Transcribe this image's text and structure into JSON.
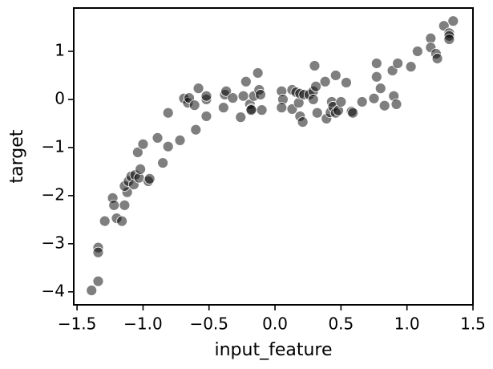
{
  "chart_data": {
    "type": "scatter",
    "x_label": "input_feature",
    "y_label": "target",
    "color": "#000000",
    "opacity": 0.5,
    "edgecolor": "#ffffff",
    "xlim": [
      -1.525,
      1.5
    ],
    "ylim": [
      -4.27,
      1.9
    ],
    "xticks": [
      {
        "value": -1.5,
        "label": "−1.5"
      },
      {
        "value": -1.0,
        "label": "−1.0"
      },
      {
        "value": -0.5,
        "label": "−0.5"
      },
      {
        "value": 0.0,
        "label": "0.0"
      },
      0.5,
      {
        "value": 1.0,
        "label": "1.0"
      },
      1.5
    ],
    "yticks": [
      {
        "value": -4,
        "label": "−4"
      },
      {
        "value": -3,
        "label": "−3"
      },
      {
        "value": -2,
        "label": "−2"
      },
      {
        "value": -1,
        "label": "−1"
      },
      0,
      1
    ],
    "x": [
      -1.39,
      -1.34,
      -1.34,
      -1.34,
      -1.29,
      -1.23,
      -1.22,
      -1.2,
      -1.16,
      -1.14,
      -1.12,
      -1.14,
      -1.11,
      -1.09,
      -1.07,
      -1.06,
      -1.03,
      -1.02,
      -1.04,
      -1.0,
      -0.96,
      -0.95,
      -0.89,
      -0.85,
      -0.81,
      -0.81,
      -0.72,
      -0.69,
      -0.66,
      -0.65,
      -0.61,
      -0.6,
      -0.58,
      -0.52,
      -0.52,
      -0.52,
      -0.39,
      -0.38,
      -0.37,
      -0.32,
      -0.26,
      -0.24,
      -0.22,
      -0.19,
      -0.18,
      -0.16,
      -0.18,
      -0.13,
      -0.12,
      -0.11,
      -0.1,
      0.05,
      0.06,
      0.05,
      0.13,
      0.13,
      0.16,
      0.18,
      0.19,
      0.19,
      0.21,
      0.22,
      0.26,
      0.29,
      0.29,
      0.3,
      0.31,
      0.32,
      0.38,
      0.39,
      0.43,
      0.42,
      0.44,
      0.46,
      0.46,
      0.48,
      0.5,
      0.54,
      0.58,
      0.59,
      0.66,
      0.75,
      0.77,
      0.77,
      0.8,
      0.83,
      0.89,
      0.9,
      0.92,
      0.93,
      1.03,
      1.08,
      1.18,
      1.18,
      1.22,
      1.23,
      1.28,
      1.32,
      1.32,
      1.32,
      1.35
    ],
    "values": [
      -3.97,
      -3.78,
      -3.08,
      -3.18,
      -2.53,
      -2.05,
      -2.2,
      -2.47,
      -2.53,
      -2.2,
      -1.93,
      -1.8,
      -1.7,
      -1.6,
      -1.77,
      -1.57,
      -1.63,
      -1.45,
      -1.1,
      -0.93,
      -1.7,
      -1.65,
      -0.8,
      -1.32,
      -0.98,
      -0.28,
      -0.85,
      0.02,
      -0.07,
      0.03,
      -0.12,
      -0.63,
      0.23,
      -0.35,
      0.0,
      0.07,
      -0.17,
      0.1,
      0.17,
      0.03,
      -0.37,
      0.07,
      0.37,
      -0.1,
      -0.2,
      0.07,
      -0.22,
      0.55,
      0.2,
      0.1,
      -0.22,
      0.17,
      0.0,
      -0.17,
      0.2,
      -0.2,
      0.15,
      -0.07,
      0.12,
      -0.35,
      -0.47,
      0.1,
      0.1,
      0.17,
      0.0,
      0.7,
      0.27,
      -0.28,
      0.37,
      -0.4,
      -0.05,
      -0.27,
      -0.15,
      0.5,
      -0.28,
      -0.23,
      -0.05,
      0.35,
      -0.25,
      -0.28,
      -0.05,
      0.02,
      0.75,
      0.47,
      0.23,
      -0.13,
      0.6,
      0.07,
      -0.1,
      0.75,
      0.68,
      1.0,
      1.27,
      1.08,
      0.95,
      0.85,
      1.53,
      1.38,
      1.32,
      1.25,
      1.63
    ]
  }
}
